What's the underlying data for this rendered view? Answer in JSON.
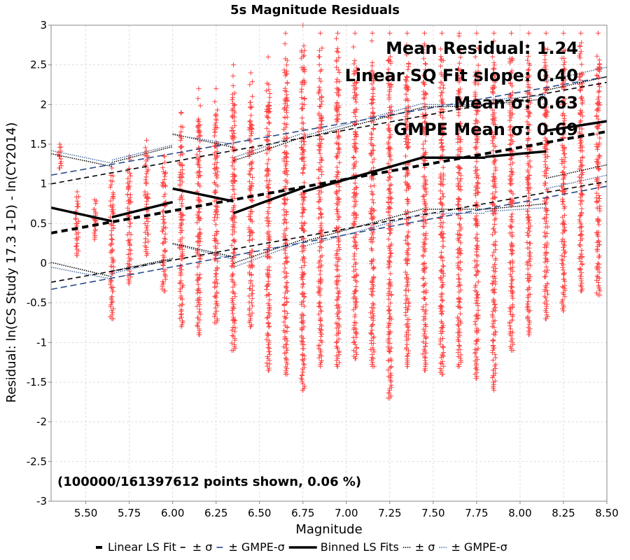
{
  "chart_data": {
    "type": "scatter",
    "title": "5s Magnitude Residuals",
    "xlabel": "Magnitude",
    "ylabel": "Residual: ln(CS Study 17.3 1-D) - ln(CY2014)",
    "xlim": [
      5.3,
      8.5
    ],
    "ylim": [
      -3,
      3
    ],
    "x_ticks": [
      "5.50",
      "5.75",
      "6.00",
      "6.25",
      "6.50",
      "6.75",
      "7.00",
      "7.25",
      "7.50",
      "7.75",
      "8.00",
      "8.25",
      "8.50"
    ],
    "y_ticks": [
      "-3",
      "-2.5",
      "-2",
      "-1.5",
      "-1",
      "-0.5",
      "0",
      "0.5",
      "1",
      "1.5",
      "2",
      "2.5",
      "3"
    ],
    "grid": true,
    "annotations": [
      "Mean Residual: 1.24",
      "Linear SQ Fit slope: 0.40",
      "Mean σ: 0.63",
      "GMPE Mean σ: 0.69",
      "(100000/161397612 points shown, 0.06 %)"
    ],
    "legend_position": "bottom",
    "legend": [
      {
        "label": "Linear LS Fit",
        "style": "thick-dash",
        "color": "#000000"
      },
      {
        "label": "± σ",
        "style": "dash",
        "color": "#000000"
      },
      {
        "label": "± GMPE-σ",
        "style": "dash",
        "color": "#2a4a8a"
      },
      {
        "label": "Binned LS Fits",
        "style": "solid-thick",
        "color": "#000000"
      },
      {
        "label": "± σ",
        "style": "dotted",
        "color": "#000000"
      },
      {
        "label": "± GMPE-σ",
        "style": "dotted",
        "color": "#4a6aa0"
      }
    ],
    "scatter_color": "#ff4444",
    "scatter_marker": "+",
    "scatter_columns": [
      {
        "x": 5.35,
        "ymin": 1.2,
        "ymax": 1.5
      },
      {
        "x": 5.45,
        "ymin": 0.1,
        "ymax": 0.9
      },
      {
        "x": 5.55,
        "ymin": 0.3,
        "ymax": 0.8
      },
      {
        "x": 5.65,
        "ymin": -0.7,
        "ymax": 1.2
      },
      {
        "x": 5.75,
        "ymin": -0.25,
        "ymax": 1.35
      },
      {
        "x": 5.85,
        "ymin": 0.1,
        "ymax": 1.55
      },
      {
        "x": 5.95,
        "ymin": -0.35,
        "ymax": 1.35
      },
      {
        "x": 6.05,
        "ymin": -0.8,
        "ymax": 1.9
      },
      {
        "x": 6.15,
        "ymin": -0.9,
        "ymax": 2.2
      },
      {
        "x": 6.25,
        "ymin": -0.75,
        "ymax": 2.2
      },
      {
        "x": 6.35,
        "ymin": -1.1,
        "ymax": 2.5
      },
      {
        "x": 6.45,
        "ymin": -0.8,
        "ymax": 2.4
      },
      {
        "x": 6.55,
        "ymin": -1.35,
        "ymax": 2.6
      },
      {
        "x": 6.65,
        "ymin": -1.4,
        "ymax": 2.9
      },
      {
        "x": 6.75,
        "ymin": -1.6,
        "ymax": 3.0
      },
      {
        "x": 6.85,
        "ymin": -1.3,
        "ymax": 2.9
      },
      {
        "x": 6.95,
        "ymin": -1.3,
        "ymax": 2.9
      },
      {
        "x": 7.05,
        "ymin": -1.2,
        "ymax": 2.9
      },
      {
        "x": 7.15,
        "ymin": -1.3,
        "ymax": 2.9
      },
      {
        "x": 7.25,
        "ymin": -1.7,
        "ymax": 2.9
      },
      {
        "x": 7.35,
        "ymin": -1.3,
        "ymax": 2.9
      },
      {
        "x": 7.45,
        "ymin": -1.35,
        "ymax": 2.9
      },
      {
        "x": 7.55,
        "ymin": -1.4,
        "ymax": 2.9
      },
      {
        "x": 7.65,
        "ymin": -1.3,
        "ymax": 2.9
      },
      {
        "x": 7.75,
        "ymin": -1.45,
        "ymax": 2.9
      },
      {
        "x": 7.85,
        "ymin": -1.6,
        "ymax": 2.9
      },
      {
        "x": 7.95,
        "ymin": -1.1,
        "ymax": 2.9
      },
      {
        "x": 8.05,
        "ymin": -0.9,
        "ymax": 2.9
      },
      {
        "x": 8.15,
        "ymin": -0.7,
        "ymax": 2.9
      },
      {
        "x": 8.25,
        "ymin": -0.6,
        "ymax": 2.9
      },
      {
        "x": 8.35,
        "ymin": -0.35,
        "ymax": 2.9
      },
      {
        "x": 8.45,
        "ymin": -0.4,
        "ymax": 2.9
      }
    ],
    "series": [
      {
        "name": "Linear LS Fit",
        "x": [
          5.3,
          8.5
        ],
        "y": [
          0.38,
          1.66
        ]
      },
      {
        "name": "± σ",
        "x": [
          5.3,
          8.5
        ],
        "y": [
          1.0,
          2.28
        ]
      },
      {
        "name": "± σ",
        "x": [
          5.3,
          8.5
        ],
        "y": [
          -0.24,
          1.03
        ]
      },
      {
        "name": "± GMPE-σ",
        "x": [
          5.3,
          8.5
        ],
        "y": [
          1.11,
          2.35
        ]
      },
      {
        "name": "± GMPE-σ",
        "x": [
          5.3,
          8.5
        ],
        "y": [
          -0.33,
          0.97
        ]
      },
      {
        "name": "Binned LS Fits",
        "segments": [
          {
            "x": [
              5.3,
              5.65
            ],
            "y": [
              0.7,
              0.53
            ]
          },
          {
            "x": [
              5.65,
              6.0
            ],
            "y": [
              0.58,
              0.77
            ]
          },
          {
            "x": [
              6.0,
              6.35
            ],
            "y": [
              0.94,
              0.78
            ]
          },
          {
            "x": [
              6.35,
              6.75
            ],
            "y": [
              0.63,
              0.95
            ]
          },
          {
            "x": [
              6.75,
              7.45
            ],
            "y": [
              0.9,
              1.34
            ]
          },
          {
            "x": [
              7.45,
              7.8
            ],
            "y": [
              1.33,
              1.33
            ]
          },
          {
            "x": [
              7.8,
              8.15
            ],
            "y": [
              1.34,
              1.41
            ]
          },
          {
            "x": [
              8.15,
              8.5
            ],
            "y": [
              1.67,
              1.79
            ]
          }
        ]
      },
      {
        "name": "± σ",
        "segments": [
          {
            "x": [
              5.3,
              5.65
            ],
            "y": [
              1.38,
              1.22
            ]
          },
          {
            "x": [
              5.65,
              6.0
            ],
            "y": [
              1.27,
              1.47
            ]
          },
          {
            "x": [
              6.0,
              6.35
            ],
            "y": [
              1.63,
              1.46
            ]
          },
          {
            "x": [
              6.35,
              6.75
            ],
            "y": [
              1.29,
              1.59
            ]
          },
          {
            "x": [
              6.75,
              7.45
            ],
            "y": [
              1.57,
              1.97
            ]
          },
          {
            "x": [
              7.45,
              7.8
            ],
            "y": [
              1.97,
              1.98
            ]
          },
          {
            "x": [
              7.8,
              8.15
            ],
            "y": [
              2.0,
              2.07
            ]
          },
          {
            "x": [
              8.15,
              8.5
            ],
            "y": [
              2.18,
              2.35
            ]
          },
          {
            "x": [
              5.3,
              5.65
            ],
            "y": [
              0.01,
              -0.17
            ]
          },
          {
            "x": [
              5.65,
              6.0
            ],
            "y": [
              -0.1,
              0.06
            ]
          },
          {
            "x": [
              6.0,
              6.35
            ],
            "y": [
              0.25,
              0.08
            ]
          },
          {
            "x": [
              6.35,
              6.75
            ],
            "y": [
              0.0,
              0.3
            ]
          },
          {
            "x": [
              6.75,
              7.45
            ],
            "y": [
              0.27,
              0.69
            ]
          },
          {
            "x": [
              7.45,
              7.8
            ],
            "y": [
              0.68,
              0.68
            ]
          },
          {
            "x": [
              7.8,
              8.15
            ],
            "y": [
              0.68,
              0.75
            ]
          },
          {
            "x": [
              8.15,
              8.5
            ],
            "y": [
              1.07,
              1.24
            ]
          }
        ]
      },
      {
        "name": "± GMPE-σ",
        "segments": [
          {
            "x": [
              5.3,
              5.65
            ],
            "y": [
              1.42,
              1.26
            ]
          },
          {
            "x": [
              5.65,
              6.0
            ],
            "y": [
              1.3,
              1.49
            ]
          },
          {
            "x": [
              6.0,
              6.35
            ],
            "y": [
              1.62,
              1.5
            ]
          },
          {
            "x": [
              6.35,
              6.75
            ],
            "y": [
              1.33,
              1.64
            ]
          },
          {
            "x": [
              6.75,
              7.45
            ],
            "y": [
              1.6,
              2.02
            ]
          },
          {
            "x": [
              7.45,
              7.8
            ],
            "y": [
              2.0,
              2.0
            ]
          },
          {
            "x": [
              7.8,
              8.15
            ],
            "y": [
              2.05,
              2.12
            ]
          },
          {
            "x": [
              8.15,
              8.5
            ],
            "y": [
              2.3,
              2.47
            ]
          },
          {
            "x": [
              5.3,
              5.65
            ],
            "y": [
              -0.05,
              -0.2
            ]
          },
          {
            "x": [
              5.65,
              6.0
            ],
            "y": [
              -0.13,
              0.05
            ]
          },
          {
            "x": [
              6.0,
              6.35
            ],
            "y": [
              0.24,
              0.05
            ]
          },
          {
            "x": [
              6.35,
              6.75
            ],
            "y": [
              -0.05,
              0.27
            ]
          },
          {
            "x": [
              6.75,
              7.45
            ],
            "y": [
              0.21,
              0.63
            ]
          },
          {
            "x": [
              7.45,
              7.8
            ],
            "y": [
              0.63,
              0.63
            ]
          },
          {
            "x": [
              7.8,
              8.15
            ],
            "y": [
              0.65,
              0.7
            ]
          },
          {
            "x": [
              8.15,
              8.5
            ],
            "y": [
              0.94,
              1.11
            ]
          }
        ]
      }
    ]
  }
}
